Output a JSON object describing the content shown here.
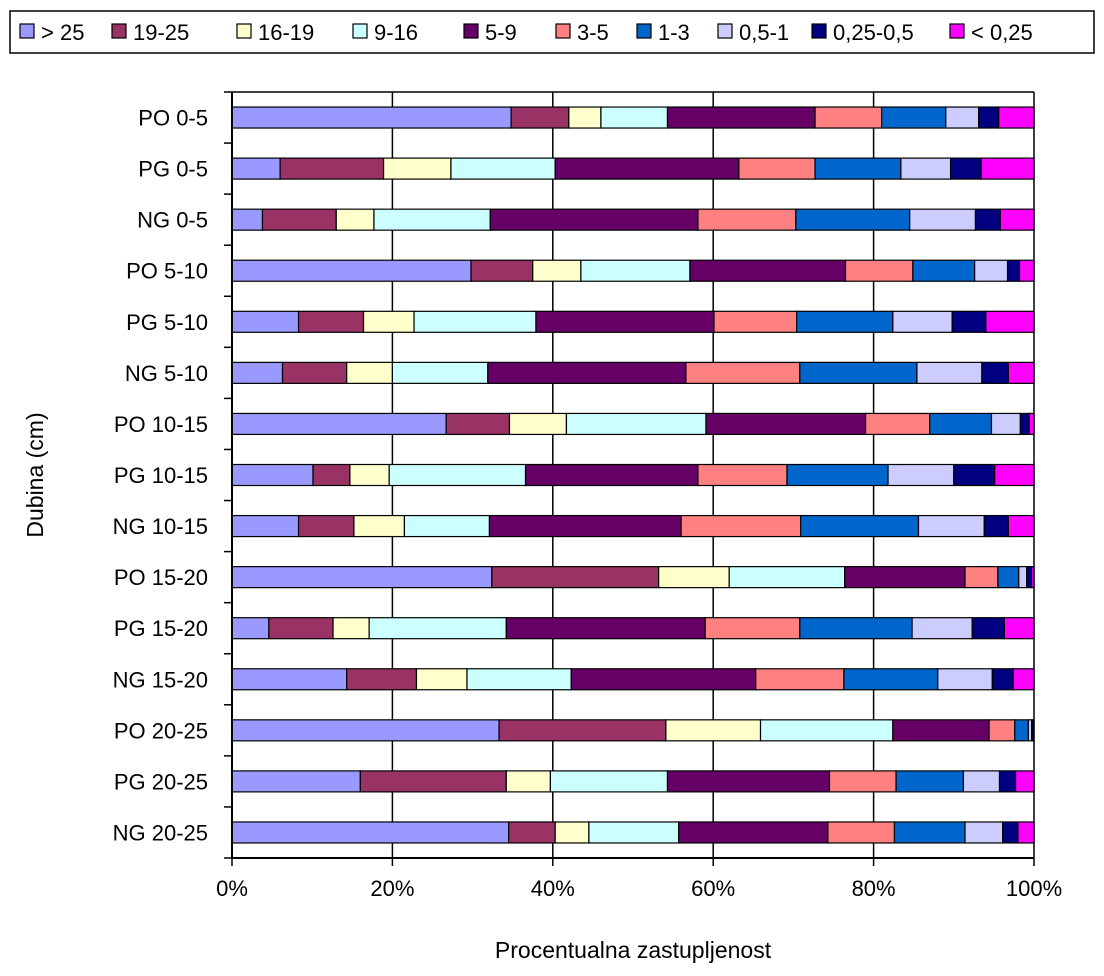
{
  "chart_data": {
    "type": "bar",
    "orientation": "horizontal",
    "stacked": "percent",
    "title": "",
    "xlabel": "Procentualna zastupljenost",
    "ylabel": "Dubina (cm)",
    "xlim": [
      0,
      100
    ],
    "x_ticks": [
      "0%",
      "20%",
      "40%",
      "60%",
      "80%",
      "100%"
    ],
    "grid": "vertical",
    "legend_position": "top",
    "categories": [
      "PO 0-5",
      "PG 0-5",
      "NG 0-5",
      "PO 5-10",
      "PG 5-10",
      "NG 5-10",
      "PO 10-15",
      "PG 10-15",
      "NG 10-15",
      "PO 15-20",
      "PG 15-20",
      "NG 15-20",
      "PO 20-25",
      "PG 20-25",
      "NG 20-25"
    ],
    "series": [
      {
        "name": "> 25",
        "color": "#9999ff",
        "values": [
          34.8,
          6.0,
          3.8,
          29.8,
          8.3,
          6.3,
          26.7,
          10.1,
          8.3,
          32.4,
          4.6,
          14.3,
          33.3,
          16.0,
          34.5
        ]
      },
      {
        "name": "19-25",
        "color": "#993366",
        "values": [
          7.2,
          12.9,
          9.2,
          7.7,
          8.1,
          8.0,
          7.9,
          4.6,
          6.9,
          20.8,
          8.0,
          8.7,
          20.8,
          18.2,
          5.8
        ]
      },
      {
        "name": "16-19",
        "color": "#ffffcc",
        "values": [
          4.0,
          8.4,
          4.7,
          6.0,
          6.3,
          5.7,
          7.1,
          4.9,
          6.3,
          8.8,
          4.5,
          6.3,
          11.8,
          5.5,
          4.2
        ]
      },
      {
        "name": "9-16",
        "color": "#ccffff",
        "values": [
          8.3,
          13.0,
          14.5,
          13.6,
          15.2,
          11.9,
          17.4,
          17.0,
          10.6,
          14.4,
          17.1,
          13.0,
          16.5,
          14.6,
          11.2
        ]
      },
      {
        "name": "5-9",
        "color": "#660066",
        "values": [
          18.4,
          22.9,
          25.9,
          19.4,
          22.2,
          24.7,
          19.9,
          21.5,
          23.9,
          15.0,
          24.8,
          23.0,
          12.0,
          20.2,
          18.6
        ]
      },
      {
        "name": "3-5",
        "color": "#ff8080",
        "values": [
          8.3,
          9.5,
          12.2,
          8.4,
          10.3,
          14.2,
          8.0,
          11.1,
          14.9,
          4.1,
          11.8,
          11.0,
          3.2,
          8.3,
          8.3
        ]
      },
      {
        "name": "1-3",
        "color": "#0066cc",
        "values": [
          8.0,
          10.7,
          14.2,
          7.7,
          12.0,
          14.6,
          7.7,
          12.6,
          14.7,
          2.6,
          14.0,
          11.7,
          1.7,
          8.4,
          8.8
        ]
      },
      {
        "name": "0,5-1",
        "color": "#ccccff",
        "values": [
          4.1,
          6.2,
          8.2,
          4.1,
          7.4,
          8.1,
          3.6,
          8.2,
          8.2,
          1.0,
          7.5,
          6.8,
          0.4,
          4.5,
          4.7
        ]
      },
      {
        "name": "0,25-0,5",
        "color": "#000080",
        "values": [
          2.5,
          3.8,
          3.1,
          1.5,
          4.2,
          3.3,
          1.1,
          5.1,
          3.0,
          0.6,
          4.0,
          2.6,
          0.2,
          2.0,
          1.9
        ]
      },
      {
        "name": "< 0,25",
        "color": "#ff00ff",
        "values": [
          4.4,
          6.6,
          4.2,
          1.8,
          6.0,
          3.2,
          0.6,
          4.9,
          3.2,
          0.3,
          3.7,
          2.6,
          0.1,
          2.3,
          2.0
        ]
      }
    ]
  }
}
